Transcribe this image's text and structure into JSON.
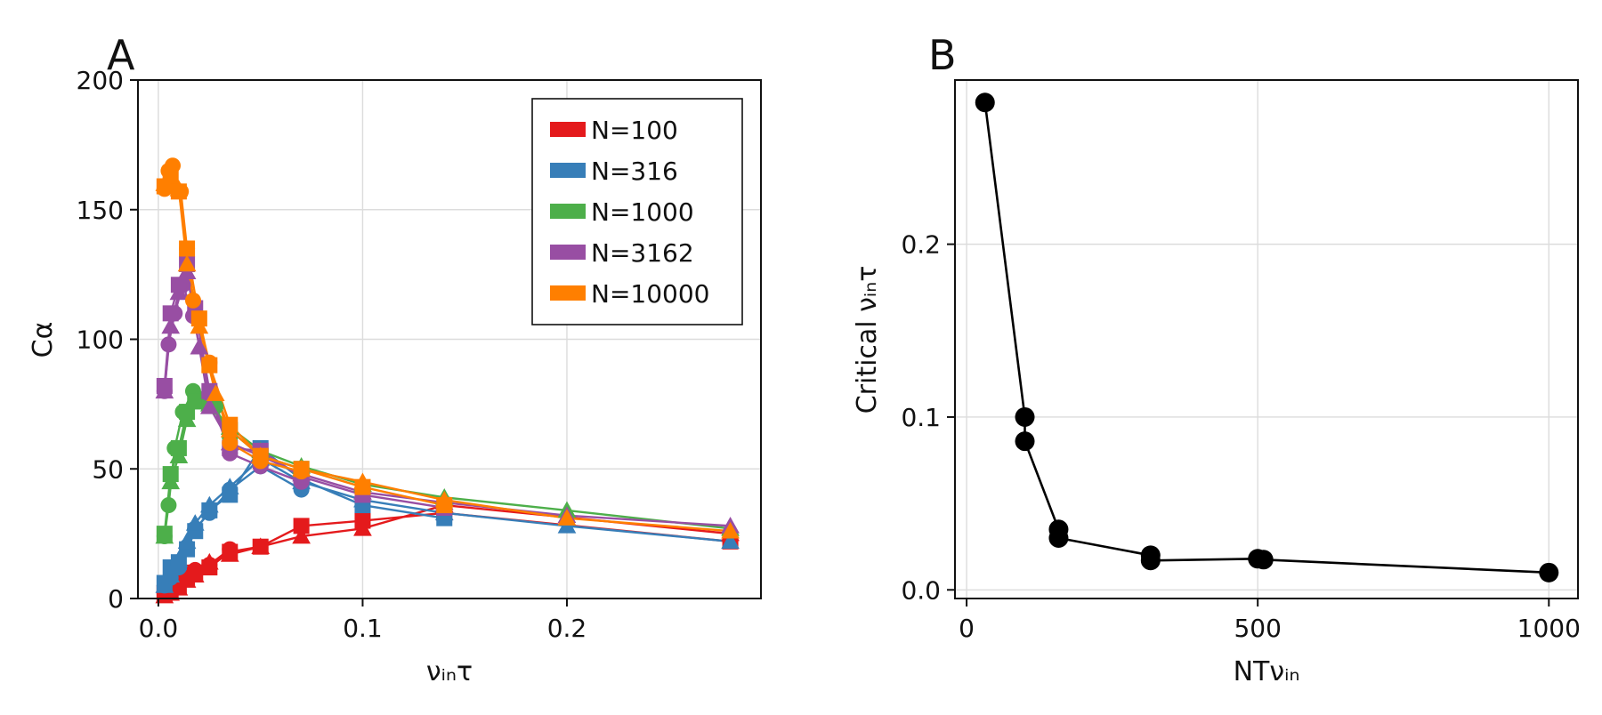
{
  "chart_data": [
    {
      "type": "line",
      "panel_label": "A",
      "xlabel": "νᵢₙτ",
      "ylabel": "Cα",
      "xlim": [
        -0.01,
        0.295
      ],
      "ylim": [
        0,
        200
      ],
      "x_ticks": [
        0.0,
        0.1,
        0.2
      ],
      "x_tick_labels": [
        "0.0",
        "0.1",
        "0.2"
      ],
      "y_ticks": [
        0,
        50,
        100,
        150,
        200
      ],
      "y_tick_labels": [
        "0",
        "50",
        "100",
        "150",
        "200"
      ],
      "grid": true,
      "legend_position": "top-right",
      "legend": [
        "N=100",
        "N=316",
        "N=1000",
        "N=3162",
        "N=10000"
      ],
      "series": [
        {
          "name": "N=100",
          "color": "#e41a1c",
          "lines": [
            {
              "marker": "circle",
              "x": [
                0.003,
                0.006,
                0.01,
                0.014,
                0.018,
                0.025,
                0.035
              ],
              "y": [
                2,
                4,
                7,
                10,
                11,
                13,
                19
              ]
            },
            {
              "marker": "square",
              "x": [
                0.003,
                0.006,
                0.01,
                0.014,
                0.018,
                0.025,
                0.035,
                0.05,
                0.07,
                0.1,
                0.14,
                0.28
              ],
              "y": [
                2,
                3,
                5,
                8,
                10,
                12,
                18,
                20,
                28,
                30,
                33,
                22
              ]
            },
            {
              "marker": "triangle",
              "x": [
                0.003,
                0.006,
                0.01,
                0.014,
                0.018,
                0.025,
                0.035,
                0.05,
                0.07,
                0.1,
                0.14,
                0.28
              ],
              "y": [
                1,
                2,
                4,
                7,
                9,
                14,
                17,
                20,
                24,
                27,
                36,
                25
              ]
            }
          ]
        },
        {
          "name": "N=316",
          "color": "#377eb8",
          "lines": [
            {
              "marker": "circle",
              "x": [
                0.003,
                0.006,
                0.01,
                0.014,
                0.018,
                0.025,
                0.035,
                0.05,
                0.07
              ],
              "y": [
                5,
                8,
                12,
                20,
                27,
                33,
                42,
                51,
                42
              ]
            },
            {
              "marker": "square",
              "x": [
                0.003,
                0.006,
                0.01,
                0.014,
                0.018,
                0.025,
                0.035,
                0.05,
                0.07,
                0.1,
                0.14
              ],
              "y": [
                6,
                12,
                14,
                19,
                26,
                34,
                40,
                58,
                46,
                36,
                31
              ]
            },
            {
              "marker": "triangle",
              "x": [
                0.003,
                0.006,
                0.01,
                0.014,
                0.018,
                0.025,
                0.035,
                0.05,
                0.07,
                0.1,
                0.14,
                0.2,
                0.28
              ],
              "y": [
                5,
                9,
                15,
                22,
                29,
                36,
                43,
                54,
                45,
                38,
                33,
                28,
                22
              ]
            }
          ]
        },
        {
          "name": "N=1000",
          "color": "#4daf4a",
          "lines": [
            {
              "marker": "circle",
              "x": [
                0.003,
                0.005,
                0.008,
                0.012,
                0.017,
                0.022,
                0.028,
                0.035
              ],
              "y": [
                24,
                36,
                58,
                72,
                80,
                77,
                74,
                62
              ]
            },
            {
              "marker": "square",
              "x": [
                0.003,
                0.006,
                0.01,
                0.014,
                0.018,
                0.025,
                0.035,
                0.05,
                0.07
              ],
              "y": [
                25,
                48,
                58,
                72,
                76,
                76,
                65,
                55,
                50
              ]
            },
            {
              "marker": "triangle",
              "x": [
                0.003,
                0.006,
                0.01,
                0.014,
                0.018,
                0.025,
                0.035,
                0.05,
                0.07,
                0.1,
                0.14,
                0.2,
                0.28
              ],
              "y": [
                24,
                45,
                55,
                69,
                76,
                75,
                66,
                57,
                51,
                44,
                39,
                34,
                27
              ]
            }
          ]
        },
        {
          "name": "N=3162",
          "color": "#984ea3",
          "lines": [
            {
              "marker": "circle",
              "x": [
                0.003,
                0.005,
                0.008,
                0.012,
                0.017,
                0.025,
                0.035,
                0.05,
                0.07
              ],
              "y": [
                80,
                98,
                110,
                121,
                109,
                79,
                56,
                51,
                45
              ]
            },
            {
              "marker": "square",
              "x": [
                0.003,
                0.006,
                0.01,
                0.014,
                0.018,
                0.025,
                0.035,
                0.05,
                0.07,
                0.1,
                0.14
              ],
              "y": [
                82,
                110,
                121,
                129,
                112,
                80,
                58,
                57,
                47,
                40,
                35
              ]
            },
            {
              "marker": "triangle",
              "x": [
                0.003,
                0.006,
                0.01,
                0.014,
                0.02,
                0.025,
                0.035,
                0.05,
                0.07,
                0.1,
                0.14,
                0.2,
                0.28
              ],
              "y": [
                80,
                105,
                118,
                126,
                97,
                74,
                60,
                55,
                48,
                41,
                37,
                32,
                28
              ]
            }
          ]
        },
        {
          "name": "N=10000",
          "color": "#ff7f00",
          "lines": [
            {
              "marker": "circle",
              "x": [
                0.003,
                0.005,
                0.007,
                0.011,
                0.014,
                0.017,
                0.025,
                0.035,
                0.05,
                0.07
              ],
              "y": [
                158,
                165,
                167,
                157,
                135,
                115,
                91,
                60,
                53,
                49
              ]
            },
            {
              "marker": "square",
              "x": [
                0.003,
                0.006,
                0.01,
                0.014,
                0.02,
                0.025,
                0.035,
                0.05,
                0.07,
                0.1,
                0.14
              ],
              "y": [
                159,
                162,
                157,
                135,
                108,
                90,
                67,
                55,
                50,
                43,
                36
              ]
            },
            {
              "marker": "triangle",
              "x": [
                0.003,
                0.006,
                0.01,
                0.014,
                0.02,
                0.028,
                0.035,
                0.05,
                0.07,
                0.1,
                0.14,
                0.2,
                0.28
              ],
              "y": [
                160,
                163,
                158,
                129,
                105,
                79,
                65,
                55,
                50,
                45,
                38,
                31,
                26
              ]
            }
          ]
        }
      ]
    },
    {
      "type": "line",
      "panel_label": "B",
      "xlabel": "NTνᵢₙ",
      "ylabel": "Critical νᵢₙτ",
      "xlim": [
        -20,
        1050
      ],
      "ylim": [
        -0.005,
        0.295
      ],
      "x_ticks": [
        0,
        500,
        1000
      ],
      "x_tick_labels": [
        "0",
        "500",
        "1000"
      ],
      "y_ticks": [
        0.0,
        0.1,
        0.2
      ],
      "y_tick_labels": [
        "0.0",
        "0.1",
        "0.2"
      ],
      "grid": true,
      "series": [
        {
          "name": "critical",
          "color": "#000000",
          "marker": "circle",
          "x": [
            31.6,
            100,
            100,
            158,
            158,
            316,
            316,
            500,
            510,
            1000
          ],
          "y": [
            0.282,
            0.1,
            0.086,
            0.035,
            0.03,
            0.02,
            0.017,
            0.018,
            0.0175,
            0.01
          ]
        }
      ]
    }
  ]
}
